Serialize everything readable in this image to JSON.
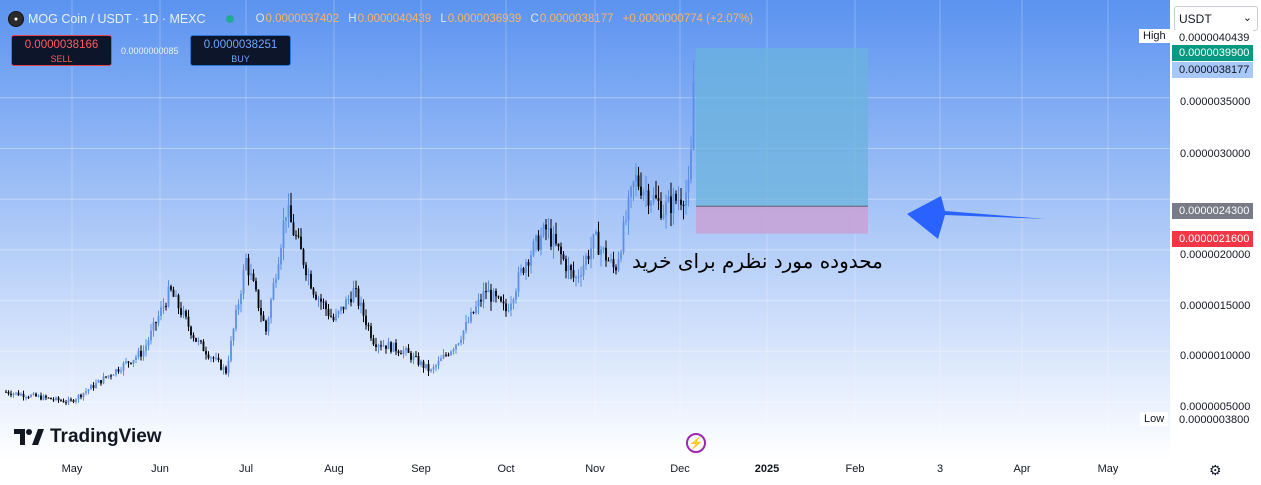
{
  "header": {
    "symbol": "MOG Coin / USDT · 1D · MEXC",
    "o_key": "O",
    "o_val": "0.0000037402",
    "h_key": "H",
    "h_val": "0.0000040439",
    "l_key": "L",
    "l_val": "0.0000036939",
    "c_key": "C",
    "c_val": "0.0000038177",
    "change": "+0.0000000774 (+2.07%)"
  },
  "trade": {
    "sell_price": "0.0000038166",
    "sell_label": "SELL",
    "spread": "0.0000000085",
    "buy_price": "0.0000038251",
    "buy_label": "BUY"
  },
  "currency_select": "USDT",
  "price_tags": {
    "high_label": "High",
    "high": "0.0000040439",
    "target": "0.0000039900",
    "last": "0.0000038177",
    "entry": "0.0000024300",
    "stop": "0.0000021600",
    "low_label": "Low",
    "low": "0.0000003800"
  },
  "annotation": {
    "text": "محدوده مورد نظرم برای خرید"
  },
  "brand": "TradingView",
  "colors": {
    "bg_top": "#5b93f0",
    "bg_bottom": "#ffffff",
    "candle_up": "#5b8fe8",
    "candle_down": "#000000",
    "target_zone": "#6bb3dd",
    "stop_zone": "#c6a4d8",
    "target_tag": "#089981",
    "last_tag": "#3d7ff2",
    "entry_tag": "#787b86",
    "stop_tag": "#f23645",
    "arrow": "#2962ff"
  },
  "chart_data": {
    "type": "candlestick",
    "interval": "1D",
    "x_axis_labels": [
      "May",
      "Jun",
      "Jul",
      "Aug",
      "Sep",
      "Oct",
      "Nov",
      "Dec",
      "2025",
      "Feb",
      "3",
      "Apr",
      "May"
    ],
    "y_axis_labels": [
      "0.0000035000",
      "0.0000030000",
      "0.0000020000",
      "0.0000015000",
      "0.0000010000",
      "0.0000005000"
    ],
    "ylim": [
      3e-07,
      4.2e-06
    ],
    "price_path": [
      [
        "May",
        6e-07
      ],
      [
        "May",
        5e-07
      ],
      [
        "Jun",
        1e-06
      ],
      [
        "Jun",
        1.6e-06
      ],
      [
        "Jun",
        1.1e-06
      ],
      [
        "Jul",
        8e-07
      ],
      [
        "Jul",
        1.9e-06
      ],
      [
        "Jul",
        1.2e-06
      ],
      [
        "Jul",
        2.4e-06
      ],
      [
        "Aug",
        1.6e-06
      ],
      [
        "Aug",
        1.3e-06
      ],
      [
        "Aug",
        1.6e-06
      ],
      [
        "Aug",
        1.1e-06
      ],
      [
        "Sep",
        1e-06
      ],
      [
        "Sep",
        8e-07
      ],
      [
        "Sep",
        1.1e-06
      ],
      [
        "Oct",
        1.6e-06
      ],
      [
        "Oct",
        1.4e-06
      ],
      [
        "Oct",
        1.9e-06
      ],
      [
        "Oct",
        2.2e-06
      ],
      [
        "Nov",
        1.7e-06
      ],
      [
        "Nov",
        2.1e-06
      ],
      [
        "Nov",
        1.8e-06
      ],
      [
        "Nov",
        2.7e-06
      ],
      [
        "Dec",
        2.4e-06
      ],
      [
        "Dec",
        2.6e-06
      ],
      [
        "Dec",
        3.8e-06
      ]
    ],
    "position": {
      "entry": 2.43e-06,
      "target": 3.99e-06,
      "stop": 2.16e-06
    },
    "grid": true
  }
}
